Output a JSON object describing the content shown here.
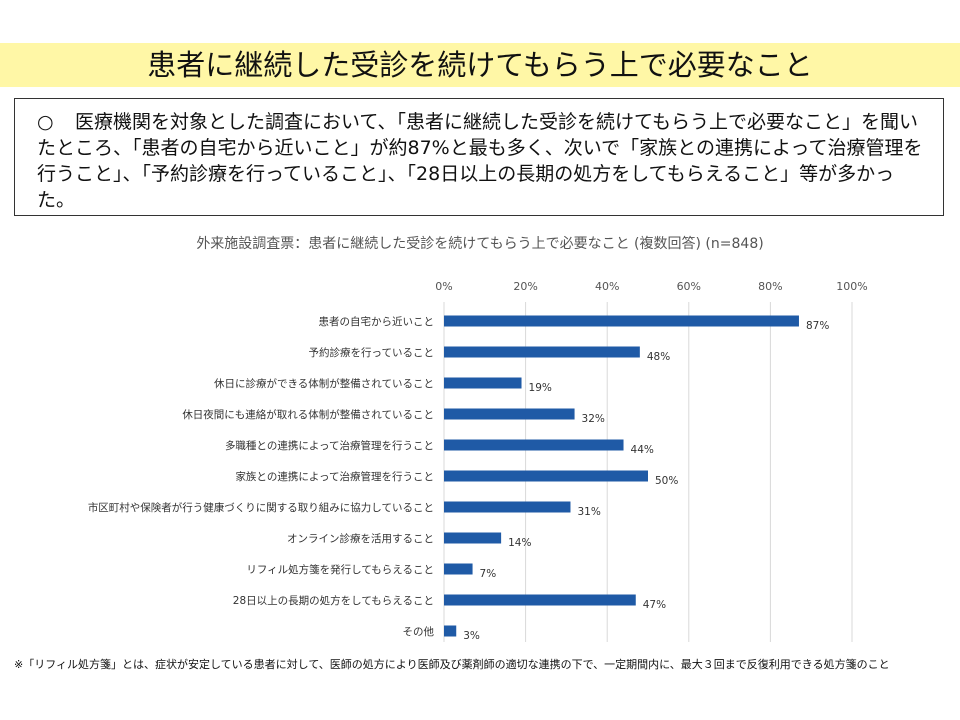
{
  "header": {
    "title": "患者に継続した受診を続けてもらう上で必要なこと"
  },
  "summary": {
    "bullet": "○",
    "text": "医療機関を対象とした調査において、「患者に継続した受診を続けてもらう上で必要なこと」を聞いたところ、「患者の自宅から近いこと」が約87%と最も多く、次いで「家族との連携によって治療管理を行うこと」、「予約診療を行っていること」、「28日以上の長期の処方をしてもらえること」等が多かった。"
  },
  "chart_data": {
    "type": "bar",
    "orientation": "horizontal",
    "title": "外来施設調査票：患者に継続した受診を続けてもらう上で必要なこと (複数回答) (n=848)",
    "categories": [
      "患者の自宅から近いこと",
      "予約診療を行っていること",
      "休日に診療ができる体制が整備されていること",
      "休日夜間にも連絡が取れる体制が整備されていること",
      "多職種との連携によって治療管理を行うこと",
      "家族との連携によって治療管理を行うこと",
      "市区町村や保険者が行う健康づくりに関する取り組みに協力していること",
      "オンライン診療を活用すること",
      "リフィル処方箋を発行してもらえること",
      "28日以上の長期の処方をしてもらえること",
      "その他"
    ],
    "values": [
      87,
      48,
      19,
      32,
      44,
      50,
      31,
      14,
      7,
      47,
      3
    ],
    "value_labels": [
      "87%",
      "48%",
      "19%",
      "32%",
      "44%",
      "50%",
      "31%",
      "14%",
      "7%",
      "47%",
      "3%"
    ],
    "xlim": [
      0,
      100
    ],
    "ticks": [
      0,
      20,
      40,
      60,
      80,
      100
    ],
    "tick_labels": [
      "0%",
      "20%",
      "40%",
      "60%",
      "80%",
      "100%"
    ],
    "grid": true,
    "bar_color": "#1f5aa6",
    "grid_color": "#d9d9d9"
  },
  "footnote": "※「リフィル処方箋」とは、症状が安定している患者に対して、医師の処方により医師及び薬剤師の適切な連携の下で、一定期間内に、最大３回まで反復利用できる処方箋のこと"
}
